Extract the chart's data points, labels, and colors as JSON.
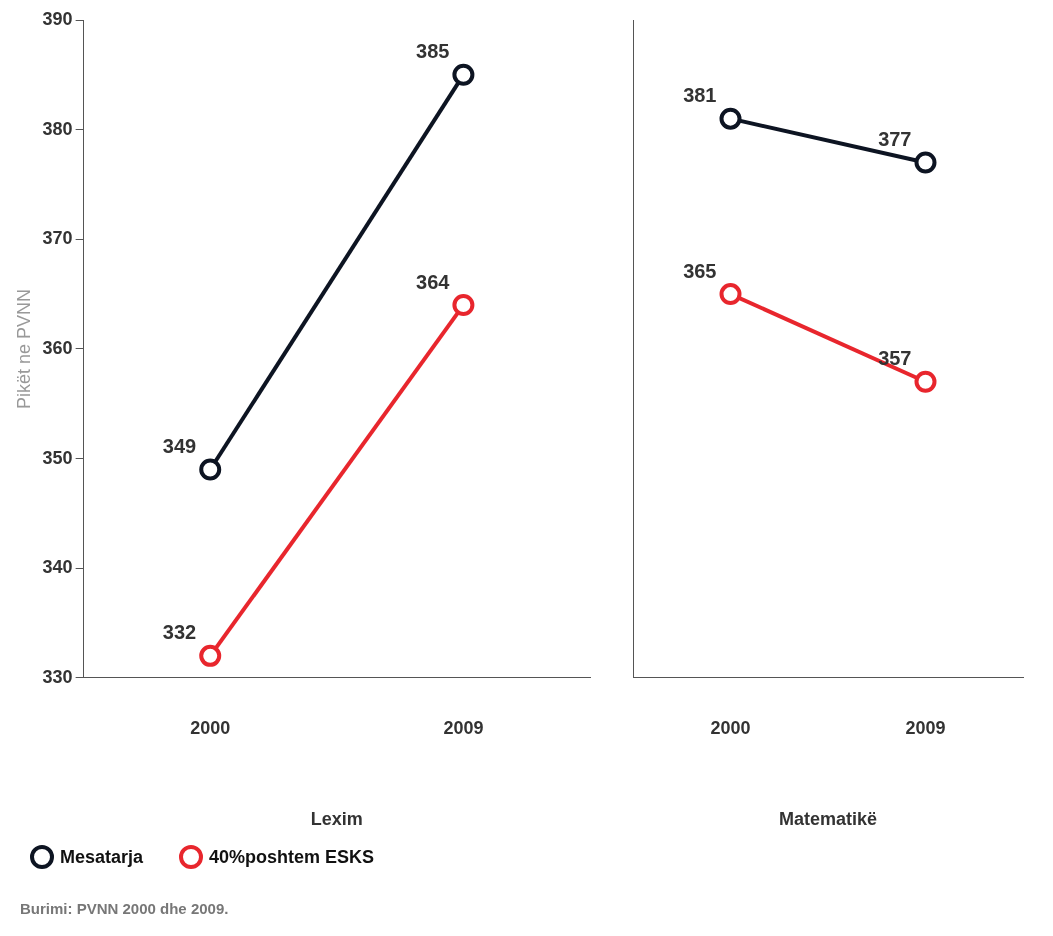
{
  "chart_data": [
    {
      "type": "line",
      "xlabel": "Lexim",
      "ylabel": "Pikët ne PVNN",
      "categories": [
        "2000",
        "2009"
      ],
      "ylim": [
        330,
        390
      ],
      "yticks": [
        330,
        340,
        350,
        360,
        370,
        380,
        390
      ],
      "marker": "circle",
      "data_labels": true,
      "legend": "bottom left",
      "annotations": [
        "Burimi: PVNN 2000 dhe 2009."
      ],
      "series": [
        {
          "name": "Mesatarja",
          "color": "#0d1422",
          "values": [
            349,
            385
          ]
        },
        {
          "name": "40%poshtem ESKS",
          "color": "#e8262d",
          "values": [
            332,
            364
          ]
        }
      ]
    },
    {
      "type": "line",
      "xlabel": "Matematikë",
      "categories": [
        "2000",
        "2009"
      ],
      "ylim": [
        330,
        390
      ],
      "yticks": [
        330,
        340,
        350,
        360,
        370,
        380,
        390
      ],
      "tick_labels": "x",
      "marker": "circle",
      "data_labels": true,
      "series": [
        {
          "color": "#0d1422",
          "values": [
            381,
            377
          ]
        },
        {
          "color": "#e8262d",
          "values": [
            365,
            357
          ]
        }
      ]
    }
  ]
}
